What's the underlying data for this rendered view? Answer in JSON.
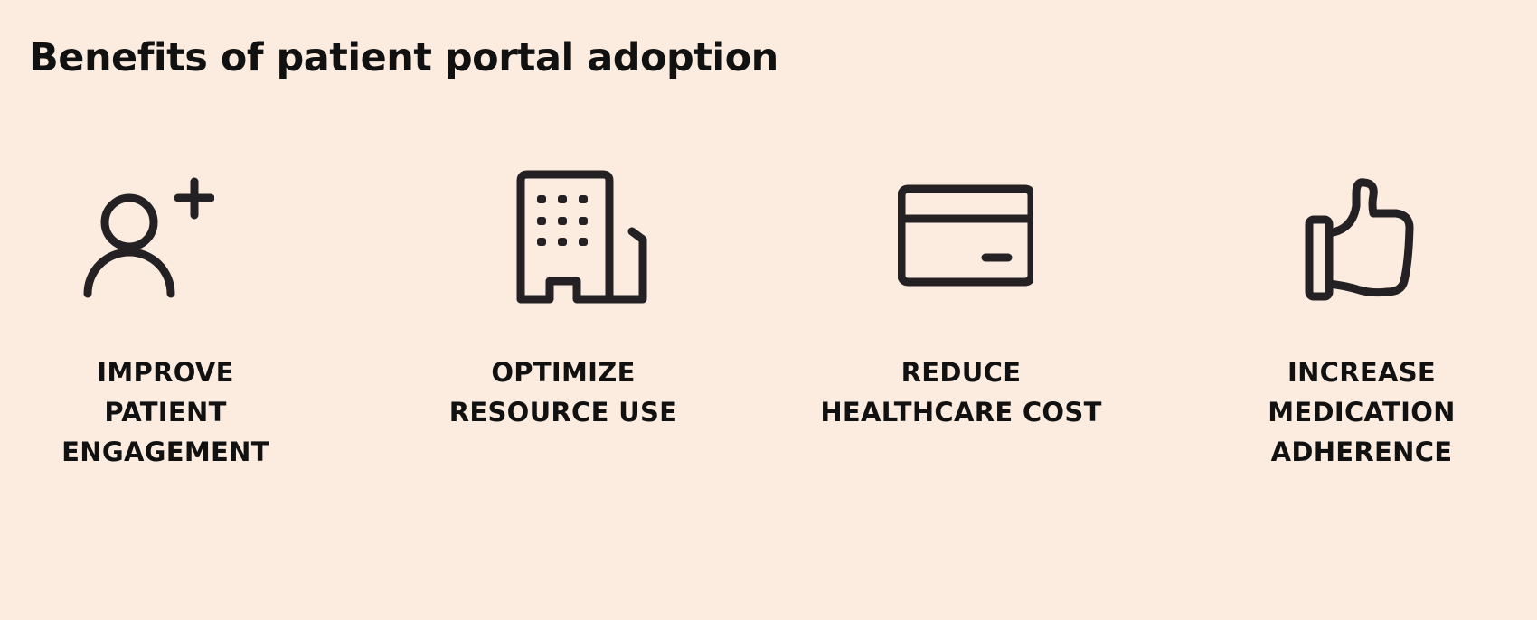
{
  "title": "Benefits of patient portal adoption",
  "benefits": [
    {
      "icon": "add-user-icon",
      "label_lines": [
        "IMPROVE",
        "PATIENT",
        "ENGAGEMENT"
      ]
    },
    {
      "icon": "building-icon",
      "label_lines": [
        "OPTIMIZE",
        "RESOURCE USE"
      ]
    },
    {
      "icon": "credit-card-icon",
      "label_lines": [
        "REDUCE",
        "HEALTHCARE COST"
      ]
    },
    {
      "icon": "thumbs-up-icon",
      "label_lines": [
        "INCREASE",
        "MEDICATION",
        "ADHERENCE"
      ]
    }
  ],
  "colors": {
    "background": "#fcece0",
    "foreground": "#111111",
    "icon_stroke": "#242124"
  }
}
